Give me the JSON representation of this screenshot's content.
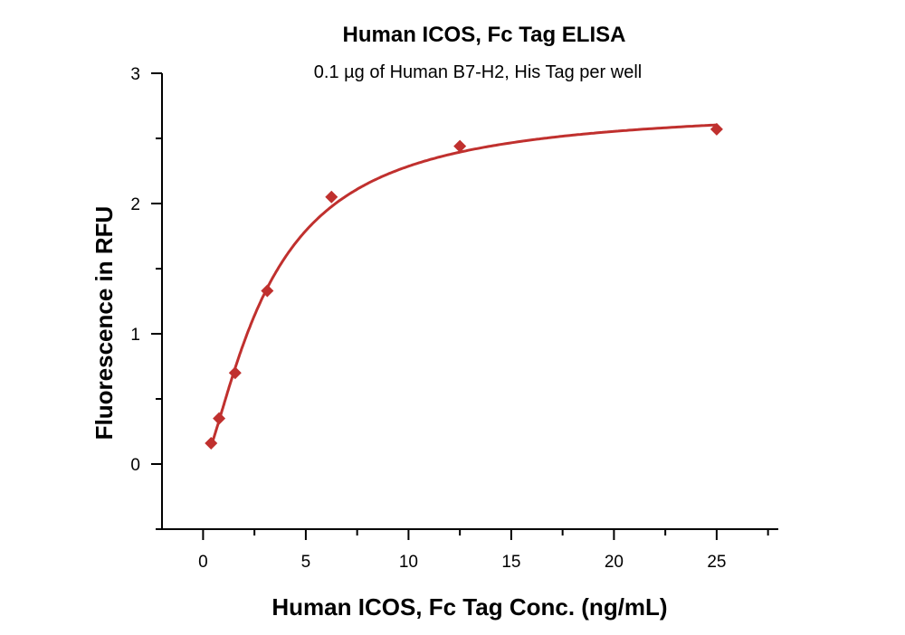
{
  "chart_data": {
    "type": "scatter",
    "title": "Human ICOS, Fc Tag ELISA",
    "subtitle": "0.1 µg of Human B7-H2, His Tag per well",
    "xlabel": "Human ICOS, Fc Tag Conc. (ng/mL)",
    "ylabel": "Fluorescence in RFU",
    "xlim": [
      -2,
      28
    ],
    "ylim": [
      -0.5,
      3
    ],
    "xticks": [
      0,
      5,
      10,
      15,
      20,
      25
    ],
    "yticks": [
      0,
      1,
      2,
      3
    ],
    "grid": false,
    "legend": "none",
    "color": "#c0302e",
    "marker": "diamond",
    "fit_curve": true,
    "x": [
      0.39,
      0.78,
      1.56,
      3.125,
      6.25,
      12.5,
      25
    ],
    "y": [
      0.16,
      0.35,
      0.7,
      1.33,
      2.05,
      2.44,
      2.57
    ]
  }
}
